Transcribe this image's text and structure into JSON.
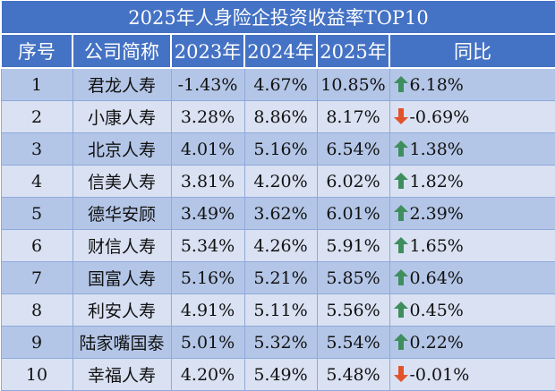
{
  "title": "2025年人身险企投资收益率TOP10",
  "columns": [
    "序号",
    "公司简称",
    "2023年",
    "2024年",
    "2025年",
    "同比"
  ],
  "colors": {
    "header_bg": "#4472C4",
    "row_odd": "#B4C6E7",
    "row_even": "#D9E1F2",
    "up": "#3E8E5E",
    "down": "#E2532B"
  },
  "rows": [
    {
      "rank": "1",
      "company": "君龙人寿",
      "y2023": "-1.43%",
      "y2024": "4.67%",
      "y2025": "10.85%",
      "yoy": "6.18%",
      "trend": "up"
    },
    {
      "rank": "2",
      "company": "小康人寿",
      "y2023": "3.28%",
      "y2024": "8.86%",
      "y2025": "8.17%",
      "yoy": "-0.69%",
      "trend": "down"
    },
    {
      "rank": "3",
      "company": "北京人寿",
      "y2023": "4.01%",
      "y2024": "5.16%",
      "y2025": "6.54%",
      "yoy": "1.38%",
      "trend": "up"
    },
    {
      "rank": "4",
      "company": "信美人寿",
      "y2023": "3.81%",
      "y2024": "4.20%",
      "y2025": "6.02%",
      "yoy": "1.82%",
      "trend": "up"
    },
    {
      "rank": "5",
      "company": "德华安顾",
      "y2023": "3.49%",
      "y2024": "3.62%",
      "y2025": "6.01%",
      "yoy": "2.39%",
      "trend": "up"
    },
    {
      "rank": "6",
      "company": "财信人寿",
      "y2023": "5.34%",
      "y2024": "4.26%",
      "y2025": "5.91%",
      "yoy": "1.65%",
      "trend": "up"
    },
    {
      "rank": "7",
      "company": "国富人寿",
      "y2023": "5.16%",
      "y2024": "5.21%",
      "y2025": "5.85%",
      "yoy": "0.64%",
      "trend": "up"
    },
    {
      "rank": "8",
      "company": "利安人寿",
      "y2023": "4.91%",
      "y2024": "5.11%",
      "y2025": "5.56%",
      "yoy": "0.45%",
      "trend": "up"
    },
    {
      "rank": "9",
      "company": "陆家嘴国泰",
      "y2023": "5.01%",
      "y2024": "5.32%",
      "y2025": "5.54%",
      "yoy": "0.22%",
      "trend": "up"
    },
    {
      "rank": "10",
      "company": "幸福人寿",
      "y2023": "4.20%",
      "y2024": "5.49%",
      "y2025": "5.48%",
      "yoy": "-0.01%",
      "trend": "down"
    }
  ]
}
